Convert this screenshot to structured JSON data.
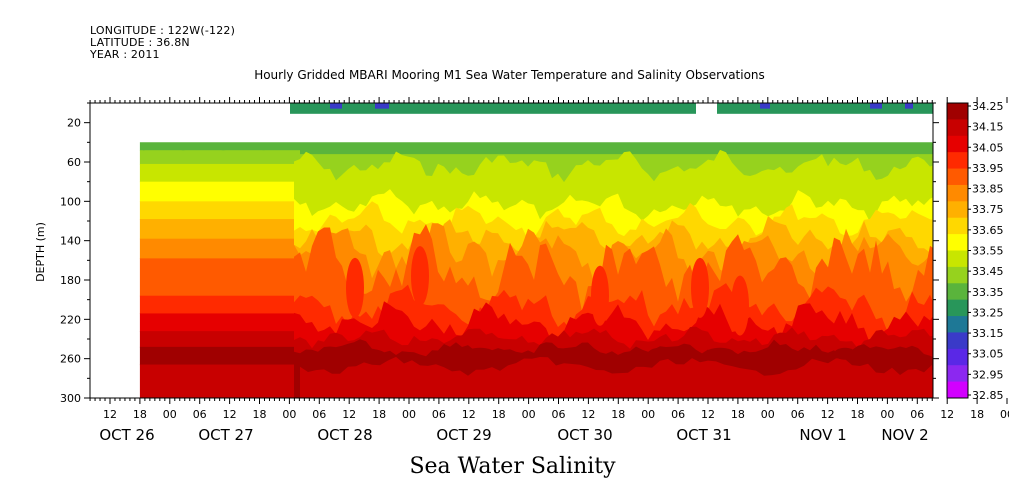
{
  "header": {
    "longitude": "LONGITUDE : 122W(-122)",
    "latitude": "LATITUDE : 36.8N",
    "year": "YEAR : 2011"
  },
  "chart_data": {
    "type": "heatmap",
    "title": "Hourly Gridded MBARI Mooring M1 Sea Water Temperature and Salinity Observations",
    "bottom_title": "Sea Water Salinity",
    "ylabel": "DEPTH (m)",
    "ylim": [
      300,
      0
    ],
    "y_ticks": [
      20,
      60,
      100,
      140,
      180,
      220,
      260,
      300
    ],
    "x_hour_ticks": [
      "12",
      "18",
      "00",
      "06",
      "12",
      "18",
      "00",
      "06",
      "12",
      "18",
      "00",
      "06",
      "12",
      "18",
      "00",
      "06",
      "12",
      "18",
      "00",
      "06",
      "12",
      "18",
      "00",
      "06",
      "12",
      "18",
      "00",
      "06",
      "12",
      "18",
      "00",
      "06"
    ],
    "x_date_labels": [
      "OCT 26",
      "OCT 27",
      "OCT 28",
      "OCT 29",
      "OCT 30",
      "OCT 31",
      "NOV  1",
      "NOV  2"
    ],
    "colorbar": {
      "levels": [
        "34.25",
        "34.15",
        "34.05",
        "33.95",
        "33.85",
        "33.75",
        "33.65",
        "33.55",
        "33.45",
        "33.35",
        "33.25",
        "33.15",
        "33.05",
        "32.95",
        "32.85"
      ],
      "colors": [
        "#a00000",
        "#c80000",
        "#e60000",
        "#ff2a00",
        "#ff5a00",
        "#ff8a00",
        "#ffb000",
        "#ffd800",
        "#ffff00",
        "#c8e600",
        "#96d21e",
        "#5ab43c",
        "#28965a",
        "#1e7896",
        "#3a3ac8",
        "#5a28e6",
        "#8c28f0",
        "#d200ff"
      ]
    },
    "data_start_date": "OCT 26 18",
    "data_depth_range": [
      40,
      300
    ],
    "surface_strip": {
      "depth": 10,
      "gap_date_range": [
        "OCT 31 06",
        "OCT 31 12"
      ]
    }
  }
}
